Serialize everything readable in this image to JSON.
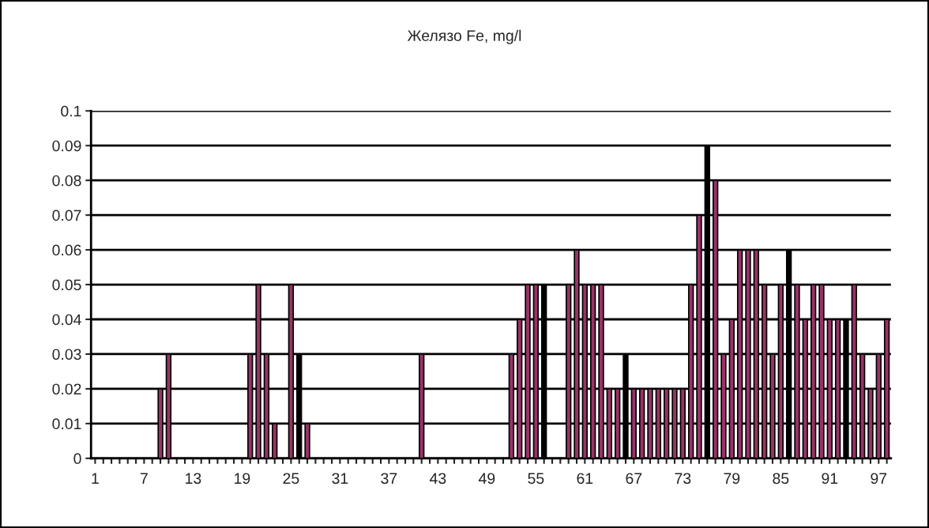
{
  "chart_data": {
    "type": "bar",
    "title": "Желязо Fe, mg/l",
    "categories": [
      "1",
      null,
      null,
      null,
      null,
      null,
      "7",
      null,
      null,
      null,
      null,
      null,
      "13",
      null,
      null,
      null,
      null,
      null,
      "19",
      null,
      null,
      null,
      null,
      null,
      "25",
      null,
      null,
      null,
      null,
      null,
      "31",
      null,
      null,
      null,
      null,
      null,
      "37",
      null,
      null,
      null,
      null,
      null,
      "43",
      null,
      null,
      null,
      null,
      null,
      "49",
      null,
      null,
      null,
      null,
      null,
      "55",
      null,
      null,
      null,
      null,
      null,
      "61",
      null,
      null,
      null,
      null,
      null,
      "67",
      null,
      null,
      null,
      null,
      null,
      "73",
      null,
      null,
      null,
      null,
      null,
      "79",
      null,
      null,
      null,
      null,
      null,
      "85",
      null,
      null,
      null,
      null,
      null,
      "91",
      null,
      null,
      null,
      null,
      null,
      "97",
      null
    ],
    "values": [
      0,
      0,
      0,
      0,
      0,
      0,
      0,
      0,
      0.02,
      0.03,
      0,
      0,
      0,
      0,
      0,
      0,
      0,
      0,
      0,
      0.03,
      0.05,
      0.03,
      0.01,
      0,
      0.05,
      0.03,
      0.01,
      0,
      0,
      0,
      0,
      0,
      0,
      0,
      0,
      0,
      0,
      0,
      0,
      0,
      0.03,
      0,
      0,
      0,
      0,
      0,
      0,
      0,
      0,
      0,
      0,
      0.03,
      0.04,
      0.05,
      0.05,
      0.05,
      0,
      0,
      0.05,
      0.06,
      0.05,
      0.05,
      0.05,
      0.02,
      0.02,
      0.03,
      0.02,
      0.02,
      0.02,
      0.02,
      0.02,
      0.02,
      0.02,
      0.05,
      0.07,
      0.09,
      0.08,
      0.03,
      0.04,
      0.06,
      0.06,
      0.06,
      0.05,
      0.03,
      0.05,
      0.06,
      0.05,
      0.04,
      0.05,
      0.05,
      0.04,
      0.04,
      0.04,
      0.05,
      0.03,
      0.02,
      0.03,
      0.04
    ],
    "colors": [
      "#993366",
      "#993366",
      "#993366",
      "#993366",
      "#993366",
      "#993366",
      "#993366",
      "#993366",
      "#993366",
      "#993366",
      "#993366",
      "#993366",
      "#993366",
      "#993366",
      "#993366",
      "#993366",
      "#993366",
      "#993366",
      "#993366",
      "#993366",
      "#993366",
      "#993366",
      "#993366",
      "#993366",
      "#993366",
      "#000000",
      "#993366",
      "#993366",
      "#993366",
      "#993366",
      "#993366",
      "#993366",
      "#993366",
      "#993366",
      "#993366",
      "#993366",
      "#993366",
      "#993366",
      "#993366",
      "#993366",
      "#993366",
      "#993366",
      "#993366",
      "#993366",
      "#993366",
      "#993366",
      "#993366",
      "#993366",
      "#993366",
      "#993366",
      "#993366",
      "#993366",
      "#993366",
      "#993366",
      "#993366",
      "#000000",
      "#993366",
      "#993366",
      "#993366",
      "#993366",
      "#993366",
      "#993366",
      "#993366",
      "#993366",
      "#993366",
      "#000000",
      "#993366",
      "#993366",
      "#993366",
      "#993366",
      "#993366",
      "#993366",
      "#993366",
      "#993366",
      "#993366",
      "#000000",
      "#993366",
      "#993366",
      "#993366",
      "#993366",
      "#993366",
      "#993366",
      "#993366",
      "#993366",
      "#993366",
      "#000000",
      "#993366",
      "#993366",
      "#993366",
      "#993366",
      "#993366",
      "#993366",
      "#000000",
      "#993366",
      "#993366",
      "#993366",
      "#993366",
      "#993366"
    ],
    "ylim": [
      0,
      0.1
    ],
    "yticks": [
      0,
      0.01,
      0.02,
      0.03,
      0.04,
      0.05,
      0.06,
      0.07,
      0.08,
      0.09,
      0.1
    ],
    "grid": "y",
    "legend": false
  }
}
